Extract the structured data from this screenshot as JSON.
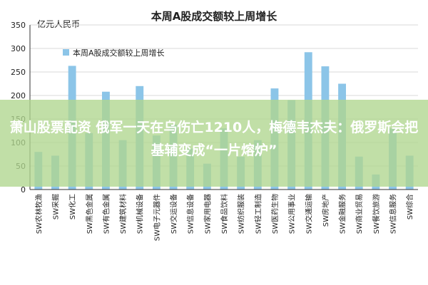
{
  "overlay_text": "萧山股票配资 俄军一天在乌伤亡1210人，梅德韦杰夫：俄罗斯会把基辅变成“一片熔炉”",
  "chart_data": {
    "type": "bar",
    "title": "本周A股成交额较上周增长",
    "ylabel": "亿元人民币",
    "ylim": [
      0,
      350
    ],
    "yticks": [
      0,
      50,
      100,
      150,
      200,
      250,
      300,
      350
    ],
    "legend": "本周A股成交额较上周增长",
    "legend_position": "top-left",
    "categories": [
      "SW农林牧渔",
      "SW采掘",
      "SW化工",
      "SW黑色金属",
      "SW有色金属",
      "SW建筑材料",
      "SW机械设备",
      "SW电子元器件",
      "SW交运设备",
      "SW信息设备",
      "SW家用电器",
      "SW食品饮料",
      "SW纺织服装",
      "SW轻工制造",
      "SW医药生物",
      "SW公用事业",
      "SW交通运输",
      "SW房地产",
      "SW金融服务",
      "SW商业贸易",
      "SW餐饮旅游",
      "SW信息服务",
      "SW综合"
    ],
    "values": [
      80,
      72,
      263,
      120,
      208,
      105,
      220,
      115,
      138,
      87,
      55,
      130,
      70,
      105,
      215,
      190,
      292,
      262,
      225,
      70,
      32,
      130,
      72
    ],
    "bar_color": "#8cc5e8"
  }
}
